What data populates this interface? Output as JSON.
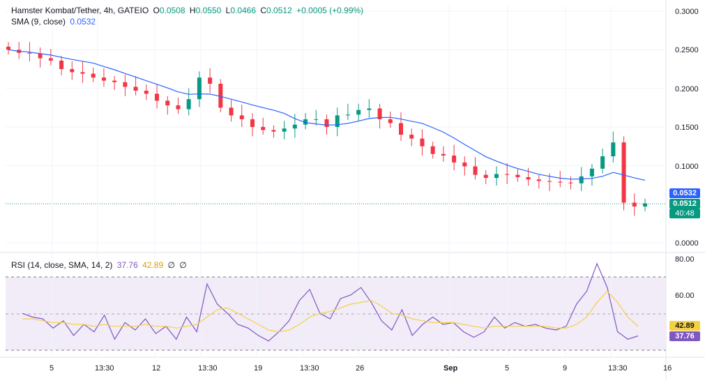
{
  "legend_main": {
    "symbol": "Hamster Kombat/Tether, 4h, GATEIO",
    "o_label": "O",
    "o_value": "0.0508",
    "h_label": "H",
    "h_value": "0.0550",
    "l_label": "L",
    "l_value": "0.0466",
    "c_label": "C",
    "c_value": "0.0512",
    "change": "+0.0005 (+0.99%)"
  },
  "legend_sma": {
    "label": "SMA (9, close)",
    "value": "0.0532"
  },
  "legend_rsi": {
    "label": "RSI (14, close, SMA, 14, 2)",
    "rsi_value": "37.76",
    "sma_value": "42.89",
    "extra1": "∅",
    "extra2": "∅"
  },
  "price_axis": [
    "0.3000",
    "0.2500",
    "0.2000",
    "0.1500",
    "0.1000",
    "0.0000"
  ],
  "rsi_axis": [
    "80.00",
    "60.00"
  ],
  "time_axis": [
    "5",
    "13:30",
    "12",
    "13:30",
    "19",
    "13:30",
    "26",
    "Sep",
    "5",
    "9",
    "13:30",
    "16"
  ],
  "price_tags": {
    "sma": "0.0532",
    "last": "0.0512",
    "countdown": "40:48",
    "rsi_sma": "42.89",
    "rsi": "37.76"
  },
  "colors": {
    "up": "#089981",
    "down": "#f23645",
    "sma": "#2962ff",
    "rsi": "#7e57c2",
    "rsi_sma": "#f5d142",
    "rsi_band": "#ede7f6"
  },
  "chart_data": [
    {
      "type": "candlestick",
      "title": "Hamster Kombat/Tether, 4h, GATEIO",
      "ylim": [
        0.0,
        0.3
      ],
      "x_ticks": [
        "5",
        "13:30",
        "12",
        "13:30",
        "19",
        "13:30",
        "26",
        "Sep",
        "5",
        "9",
        "13:30",
        "16"
      ],
      "close": [
        0.25,
        0.246,
        0.245,
        0.239,
        0.236,
        0.225,
        0.221,
        0.219,
        0.214,
        0.21,
        0.208,
        0.202,
        0.197,
        0.193,
        0.184,
        0.178,
        0.173,
        0.186,
        0.214,
        0.206,
        0.175,
        0.165,
        0.16,
        0.15,
        0.146,
        0.144,
        0.148,
        0.153,
        0.16,
        0.16,
        0.15,
        0.165,
        0.166,
        0.172,
        0.174,
        0.16,
        0.155,
        0.14,
        0.135,
        0.125,
        0.115,
        0.113,
        0.104,
        0.099,
        0.088,
        0.084,
        0.089,
        0.088,
        0.085,
        0.082,
        0.08,
        0.079,
        0.078,
        0.077,
        0.086,
        0.096,
        0.112,
        0.13,
        0.052,
        0.047,
        0.051
      ],
      "series": [
        {
          "name": "SMA (9, close)",
          "last_value": 0.0532
        }
      ]
    },
    {
      "type": "line",
      "title": "RSI (14, close, SMA, 14, 2)",
      "ylim": [
        30,
        80
      ],
      "series": [
        {
          "name": "RSI",
          "values": [
            50,
            48,
            47,
            42,
            46,
            38,
            44,
            40,
            49,
            36,
            45,
            41,
            47,
            39,
            43,
            36,
            48,
            40,
            66,
            55,
            50,
            44,
            42,
            38,
            35,
            40,
            46,
            57,
            63,
            50,
            47,
            58,
            60,
            64,
            56,
            46,
            41,
            52,
            38,
            44,
            48,
            44,
            45,
            40,
            37,
            40,
            48,
            42,
            45,
            43,
            44,
            42,
            41,
            43,
            55,
            62,
            77,
            64,
            40,
            36,
            37.76
          ]
        },
        {
          "name": "RSI-based MA",
          "values": [
            47,
            47,
            46,
            45,
            45,
            44,
            44,
            43,
            44,
            43,
            43,
            43,
            44,
            43,
            43,
            42,
            43,
            44,
            48,
            52,
            53,
            50,
            47,
            44,
            41,
            40,
            41,
            44,
            48,
            50,
            51,
            53,
            55,
            56,
            57,
            54,
            50,
            49,
            47,
            46,
            45,
            45,
            45,
            44,
            43,
            42,
            43,
            43,
            43,
            43,
            43,
            43,
            42,
            42,
            44,
            48,
            56,
            62,
            56,
            48,
            42.89
          ]
        }
      ]
    }
  ]
}
